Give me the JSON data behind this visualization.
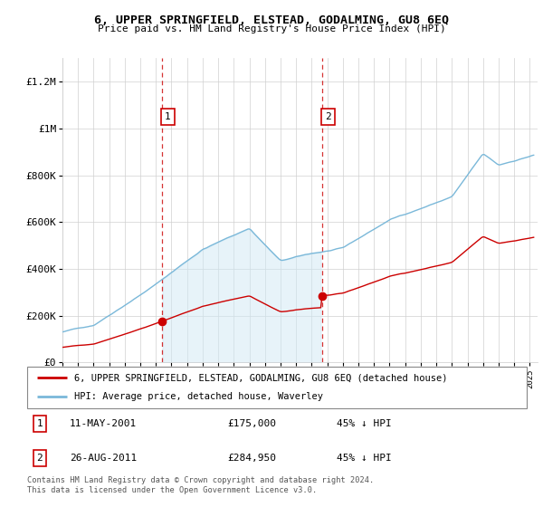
{
  "title": "6, UPPER SPRINGFIELD, ELSTEAD, GODALMING, GU8 6EQ",
  "subtitle": "Price paid vs. HM Land Registry's House Price Index (HPI)",
  "legend_line1": "6, UPPER SPRINGFIELD, ELSTEAD, GODALMING, GU8 6EQ (detached house)",
  "legend_line2": "HPI: Average price, detached house, Waverley",
  "footer": "Contains HM Land Registry data © Crown copyright and database right 2024.\nThis data is licensed under the Open Government Licence v3.0.",
  "sale1_label": "1",
  "sale1_date": "11-MAY-2001",
  "sale1_price": "£175,000",
  "sale1_hpi": "45% ↓ HPI",
  "sale2_label": "2",
  "sale2_date": "26-AUG-2011",
  "sale2_price": "£284,950",
  "sale2_hpi": "45% ↓ HPI",
  "hpi_color": "#7ab8d9",
  "hpi_fill_color": "#d0e8f5",
  "price_color": "#cc0000",
  "annotation_color": "#cc0000",
  "vline_color": "#cc0000",
  "background_chart": "#ffffff",
  "ylim": [
    0,
    1300000
  ],
  "yticks": [
    0,
    200000,
    400000,
    600000,
    800000,
    1000000,
    1200000
  ],
  "ytick_labels": [
    "£0",
    "£200K",
    "£400K",
    "£600K",
    "£800K",
    "£1M",
    "£1.2M"
  ],
  "sale_year1": 2001.37,
  "sale_year2": 2011.66,
  "sale_price1": 175000,
  "sale_price2": 284950,
  "xmin": 1995.0,
  "xmax": 2025.5
}
